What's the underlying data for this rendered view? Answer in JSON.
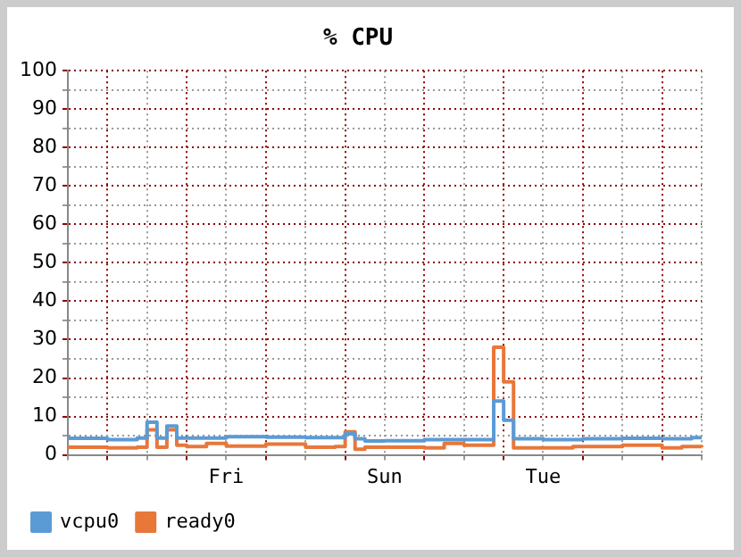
{
  "chart_data": {
    "type": "step",
    "title": "% CPU",
    "categories": [
      null,
      null,
      null,
      null,
      null,
      null,
      null,
      null,
      null,
      null,
      null,
      null,
      null,
      null,
      null,
      null,
      "Fri",
      null,
      null,
      null,
      null,
      null,
      null,
      null,
      null,
      null,
      null,
      null,
      null,
      null,
      null,
      null,
      "Sun",
      null,
      null,
      null,
      null,
      null,
      null,
      null,
      null,
      null,
      null,
      null,
      null,
      null,
      null,
      null,
      "Tue",
      null,
      null,
      null,
      null,
      null,
      null,
      null,
      null,
      null,
      null,
      null,
      null,
      null,
      null,
      null,
      null
    ],
    "ylim": [
      0,
      100
    ],
    "yticks": [
      0,
      {
        "value": 5,
        "label": null
      },
      10,
      {
        "value": 15,
        "label": null
      },
      20,
      {
        "value": 25,
        "label": null
      },
      30,
      {
        "value": 35,
        "label": null
      },
      40,
      {
        "value": 45,
        "label": null
      },
      50,
      {
        "value": 55,
        "label": null
      },
      60,
      {
        "value": 65,
        "label": null
      },
      70,
      {
        "value": 75,
        "label": null
      },
      80,
      {
        "value": 85,
        "label": null
      },
      90,
      {
        "value": 95,
        "label": null
      },
      100
    ],
    "grid": true,
    "legend": "bottom left",
    "marker": "none",
    "line_style": "solid",
    "series": [
      {
        "name": "vcpu0",
        "color": "#5b9bd5",
        "values": [
          4.3,
          4.3,
          4.3,
          4.3,
          4,
          4,
          4,
          4.4,
          8.5,
          4.4,
          7.5,
          4.4,
          4.4,
          4.4,
          4.4,
          4.4,
          4.7,
          4.7,
          4.7,
          4.7,
          4.6,
          4.6,
          4.6,
          4.6,
          4.5,
          4.5,
          4.5,
          4.5,
          5.5,
          4.2,
          3.6,
          3.6,
          3.7,
          3.7,
          3.7,
          3.7,
          4,
          4,
          4,
          4,
          4,
          4,
          4,
          14,
          9,
          4.2,
          4.2,
          4.2,
          4,
          4,
          4,
          4,
          4.2,
          4.2,
          4.2,
          4.2,
          4.3,
          4.3,
          4.3,
          4.3,
          4.2,
          4.2,
          4.2,
          4.5,
          4.5
        ]
      },
      {
        "name": "ready0",
        "color": "#e8773a",
        "values": [
          2,
          2,
          2,
          2,
          1.8,
          1.8,
          1.8,
          2,
          6.5,
          2,
          6.5,
          2.5,
          2.2,
          2.2,
          3,
          3,
          2.3,
          2.3,
          2.3,
          2.3,
          2.8,
          2.8,
          2.8,
          2.8,
          2,
          2,
          2,
          2.2,
          6,
          1.5,
          2,
          2,
          2,
          2,
          2,
          2,
          1.8,
          1.8,
          3,
          3,
          2.5,
          2.5,
          2.5,
          28,
          19,
          1.8,
          1.8,
          1.8,
          1.8,
          1.8,
          1.8,
          2.2,
          2.2,
          2.2,
          2.2,
          2.2,
          2.5,
          2.5,
          2.5,
          2.5,
          1.8,
          1.8,
          2.2,
          2.2,
          2
        ]
      }
    ]
  }
}
